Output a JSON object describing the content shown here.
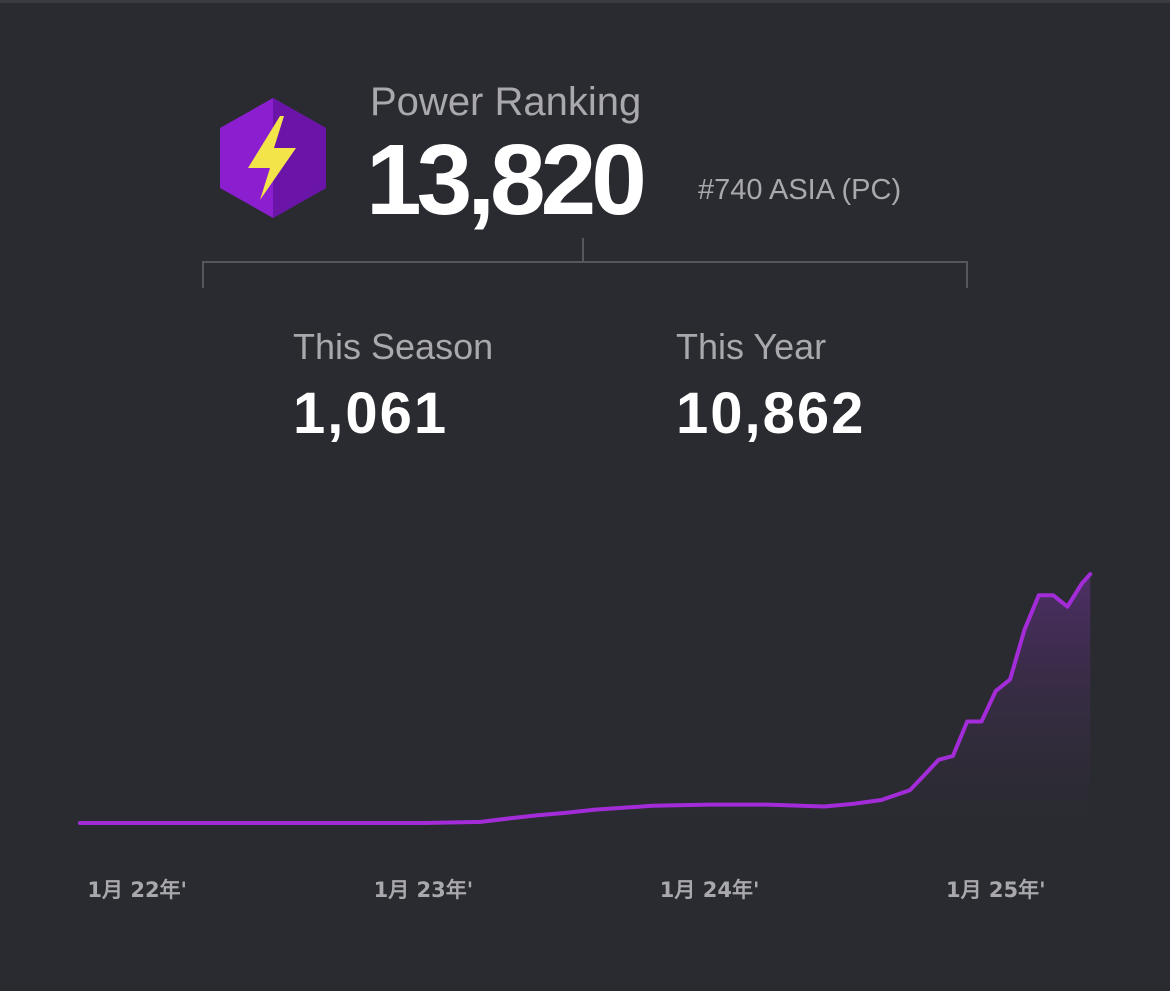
{
  "header": {
    "icon": "lightning-bolt-hexagon-icon",
    "title": "Power Ranking",
    "value": "13,820",
    "rank": "#740 ASIA (PC)"
  },
  "stats": [
    {
      "label": "This Season",
      "value": "1,061"
    },
    {
      "label": "This Year",
      "value": "10,862"
    }
  ],
  "colors": {
    "line": "#a32cd8",
    "background": "#292b30",
    "text_muted": "#a9a9ad",
    "icon_purple": "#8b1fd0",
    "icon_bolt": "#f3e44a"
  },
  "chart_data": {
    "type": "area",
    "x_ticks": [
      "1月 22年'",
      "1月 23年'",
      "1月 24年'",
      "1月 25年'"
    ],
    "x": [
      2021.8,
      2022.0,
      2022.5,
      2023.0,
      2023.2,
      2023.3,
      2023.4,
      2023.5,
      2023.6,
      2023.8,
      2024.0,
      2024.2,
      2024.4,
      2024.5,
      2024.6,
      2024.7,
      2024.75,
      2024.8,
      2024.85,
      2024.9,
      2024.95,
      2025.0,
      2025.05,
      2025.1,
      2025.15,
      2025.2,
      2025.25,
      2025.3,
      2025.33
    ],
    "y": [
      0,
      0,
      0,
      0,
      30,
      120,
      200,
      270,
      350,
      450,
      480,
      480,
      430,
      500,
      600,
      860,
      1250,
      1650,
      1750,
      2650,
      2650,
      3450,
      3750,
      5050,
      5950,
      5950,
      5650,
      6250,
      6500
    ],
    "ylim": [
      0,
      7000
    ],
    "xlim": [
      2021.8,
      2025.35
    ],
    "grid": false
  }
}
